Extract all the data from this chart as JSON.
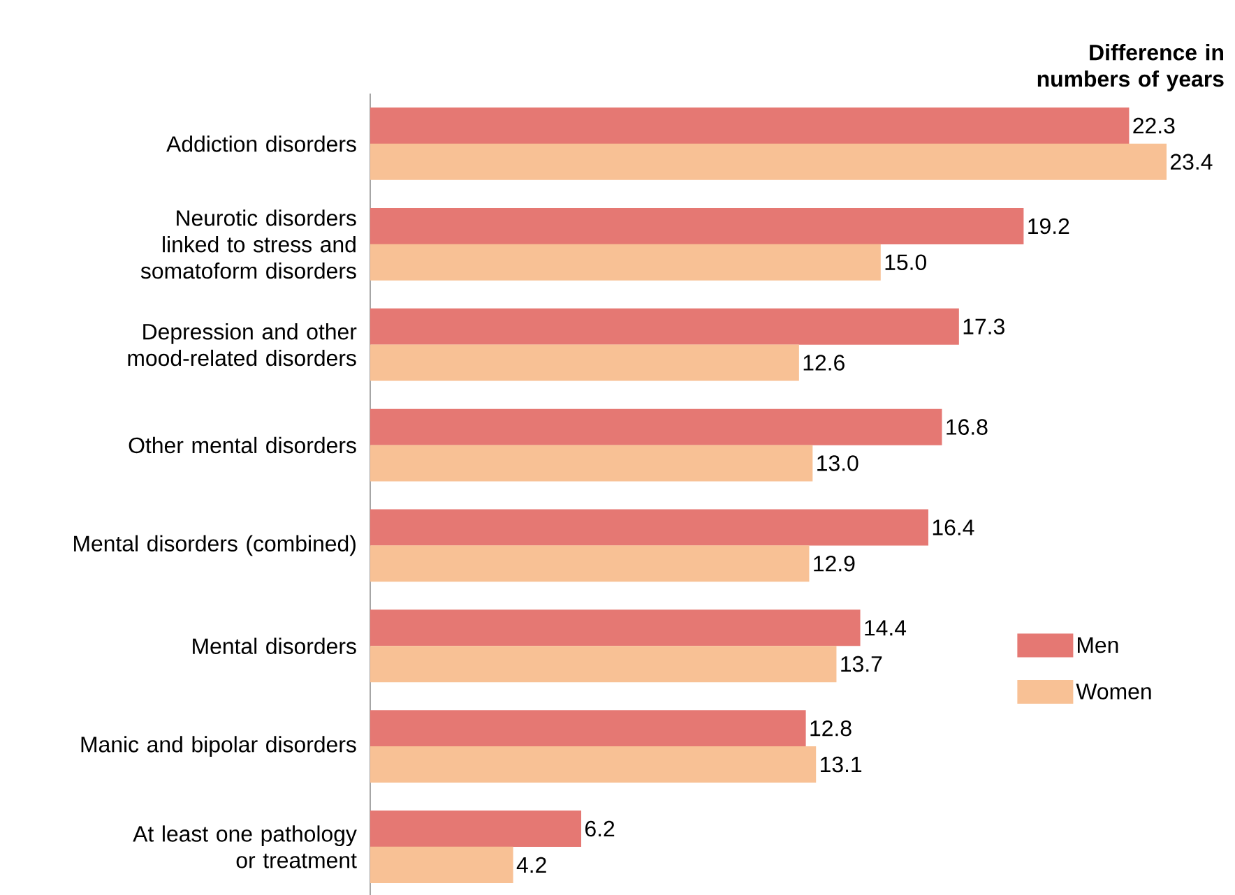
{
  "chart_data": {
    "type": "bar",
    "orientation": "horizontal",
    "xlabel": "Difference in numbers of years",
    "categories": [
      "Addiction disorders",
      "Neurotic disorders linked to stress and somatoform disorders",
      "Depression and other mood-related disorders",
      "Other mental disorders",
      "Mental disorders (combined)",
      "Mental disorders",
      "Manic and bipolar disorders",
      "At least one pathology or treatment"
    ],
    "series": [
      {
        "name": "Men",
        "color": "#e57873",
        "values": [
          22.3,
          19.2,
          17.3,
          16.8,
          16.4,
          14.4,
          12.8,
          6.2
        ],
        "value_labels": [
          "22.3",
          "19.2",
          "17.3",
          "16.8",
          "16.4",
          "14.4",
          "12.8",
          "6.2"
        ]
      },
      {
        "name": "Women",
        "color": "#f8c195",
        "values": [
          23.4,
          15.0,
          12.6,
          13.0,
          12.9,
          13.7,
          13.1,
          4.2
        ],
        "value_labels": [
          "23.4",
          "15.0",
          "12.6",
          "13.0",
          "12.9",
          "13.7",
          "13.1",
          "4.2"
        ]
      }
    ],
    "legend": "right",
    "grid": false
  }
}
